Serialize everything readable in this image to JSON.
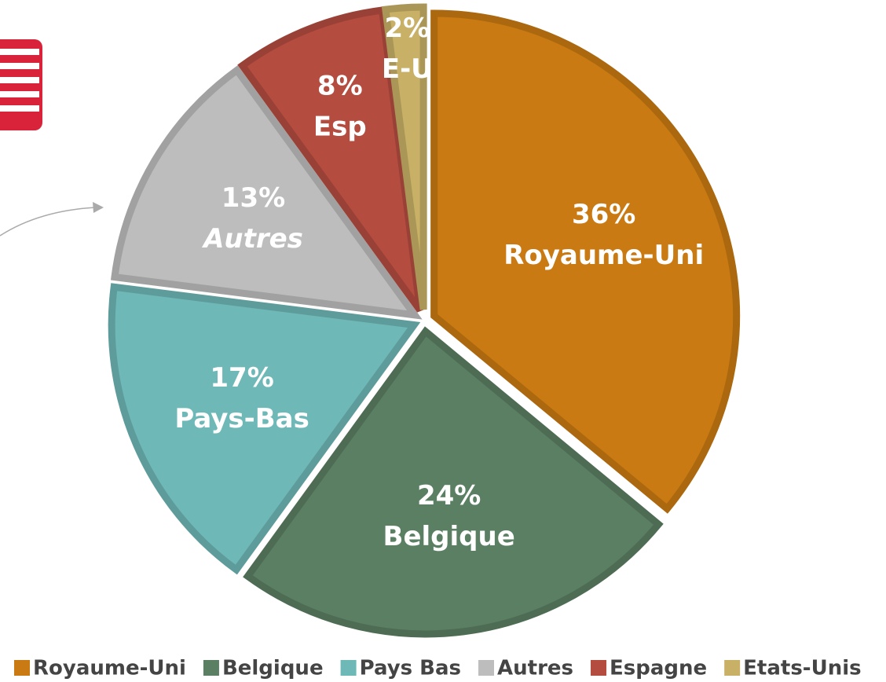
{
  "chart_data": {
    "type": "pie",
    "categories": [
      "Royaume-Uni",
      "Belgique",
      "Pays Bas",
      "Autres",
      "Espagne",
      "Etats-Unis"
    ],
    "values": [
      36,
      24,
      17,
      13,
      8,
      2
    ],
    "value_labels": [
      "36%",
      "24%",
      "17%",
      "13%",
      "8%",
      "2%"
    ],
    "slice_labels": [
      "Royaume-Uni",
      "Belgique",
      "Pays-Bas",
      "Autres",
      "Esp",
      "E-U"
    ],
    "colors": [
      "#c97a12",
      "#5a7f62",
      "#6fb8b8",
      "#bdbdbd",
      "#b44c3f",
      "#c8b066"
    ],
    "legend": "bottom"
  }
}
